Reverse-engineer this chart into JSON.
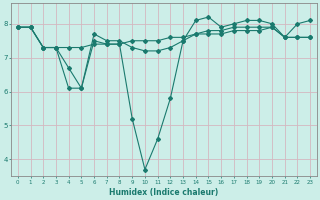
{
  "background_color": "#cceee8",
  "grid_color": "#d4b8c0",
  "line_color": "#1a7a6e",
  "spine_color": "#888888",
  "xlabel": "Humidex (Indice chaleur)",
  "xlim": [
    -0.5,
    23.5
  ],
  "ylim": [
    3.5,
    8.6
  ],
  "yticks": [
    4,
    5,
    6,
    7,
    8
  ],
  "xticks": [
    0,
    1,
    2,
    3,
    4,
    5,
    6,
    7,
    8,
    9,
    10,
    11,
    12,
    13,
    14,
    15,
    16,
    17,
    18,
    19,
    20,
    21,
    22,
    23
  ],
  "series": [
    [
      7.9,
      7.9,
      7.3,
      7.3,
      6.1,
      6.1,
      7.5,
      7.4,
      7.4,
      5.2,
      3.7,
      4.6,
      5.8,
      7.5,
      8.1,
      8.2,
      7.9,
      8.0,
      8.1,
      8.1,
      8.0,
      7.6,
      8.0,
      8.1
    ],
    [
      7.9,
      7.9,
      7.3,
      7.3,
      6.7,
      6.1,
      7.7,
      7.5,
      7.5,
      7.3,
      7.2,
      7.2,
      7.3,
      7.5,
      7.7,
      7.8,
      7.8,
      7.9,
      7.9,
      7.9,
      7.9,
      7.6,
      7.6,
      7.6
    ],
    [
      7.9,
      7.9,
      7.3,
      7.3,
      7.3,
      7.3,
      7.4,
      7.4,
      7.4,
      7.5,
      7.5,
      7.5,
      7.6,
      7.6,
      7.7,
      7.7,
      7.7,
      7.8,
      7.8,
      7.8,
      7.9,
      7.6,
      7.6,
      7.6
    ]
  ]
}
